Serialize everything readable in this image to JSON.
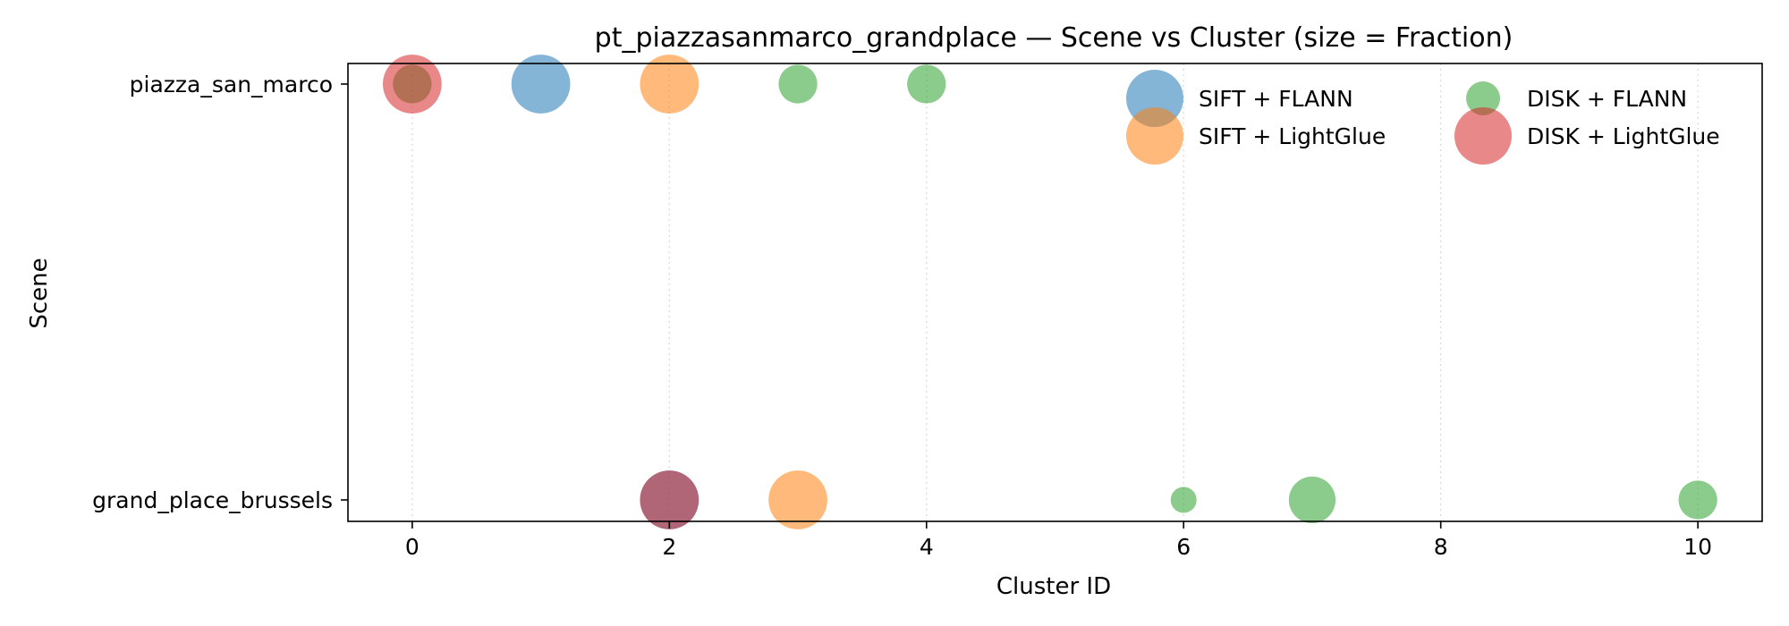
{
  "chart_data": {
    "type": "scatter",
    "title": "pt_piazzasanmarco_grandplace — Scene vs Cluster (size = Fraction)",
    "xlabel": "Cluster ID",
    "ylabel": "Scene",
    "xlim": [
      -0.5,
      10.5
    ],
    "xticks": [
      0,
      2,
      4,
      6,
      8,
      10
    ],
    "categories": [
      "piazza_san_marco",
      "grand_place_brussels"
    ],
    "grid": "x-dotted",
    "legend": {
      "placement": "top-right",
      "columns": 2
    },
    "series": [
      {
        "name": "SIFT + FLANN",
        "color": "#1f77b4",
        "points": [
          {
            "x": 1,
            "y": "piazza_san_marco",
            "fraction": 0.5
          },
          {
            "x": 2,
            "y": "grand_place_brussels",
            "fraction": 0.5
          }
        ]
      },
      {
        "name": "SIFT + LightGlue",
        "color": "#ff7f0e",
        "points": [
          {
            "x": 2,
            "y": "piazza_san_marco",
            "fraction": 0.5
          },
          {
            "x": 3,
            "y": "grand_place_brussels",
            "fraction": 0.5
          }
        ]
      },
      {
        "name": "DISK + FLANN",
        "color": "#2ca02c",
        "points": [
          {
            "x": 0,
            "y": "piazza_san_marco",
            "fraction": 0.17
          },
          {
            "x": 3,
            "y": "piazza_san_marco",
            "fraction": 0.17
          },
          {
            "x": 4,
            "y": "piazza_san_marco",
            "fraction": 0.17
          },
          {
            "x": 6,
            "y": "grand_place_brussels",
            "fraction": 0.05
          },
          {
            "x": 7,
            "y": "grand_place_brussels",
            "fraction": 0.28
          },
          {
            "x": 10,
            "y": "grand_place_brussels",
            "fraction": 0.17
          }
        ]
      },
      {
        "name": "DISK + LightGlue",
        "color": "#d62728",
        "points": [
          {
            "x": 0,
            "y": "piazza_san_marco",
            "fraction": 0.5
          },
          {
            "x": 2,
            "y": "grand_place_brussels",
            "fraction": 0.5
          }
        ]
      }
    ]
  }
}
